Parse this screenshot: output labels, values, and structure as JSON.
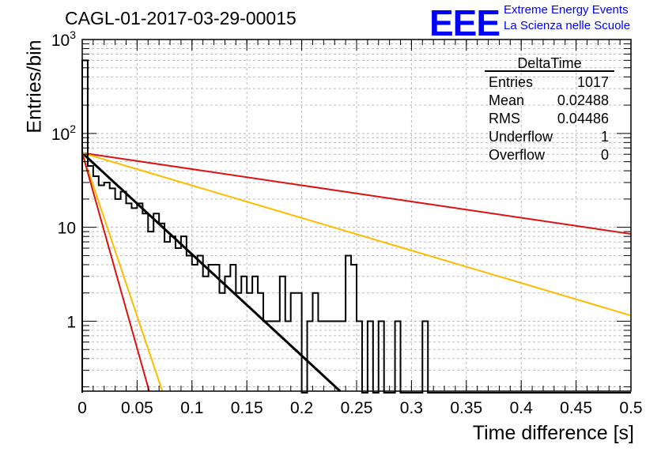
{
  "header": {
    "title": "CAGL-01-2017-03-29-00015",
    "logo_text": "EEE",
    "logo_line1": "Extreme Energy Events",
    "logo_line2": "La Scienza nelle Scuole"
  },
  "stats_box": {
    "name": "DeltaTime",
    "rows": [
      {
        "label": "Entries",
        "value": "1017"
      },
      {
        "label": "Mean",
        "value": "0.02488"
      },
      {
        "label": "RMS",
        "value": "0.04486"
      },
      {
        "label": "Underflow",
        "value": "1"
      },
      {
        "label": "Overflow",
        "value": "0"
      }
    ]
  },
  "colors": {
    "histogram": "#000000",
    "fit": "#000000",
    "red_band": "#dd1111",
    "yellow_band": "#ffbb00",
    "grid": "#bbbbbb"
  },
  "chart_data": {
    "type": "histogram",
    "title": "CAGL-01-2017-03-29-00015",
    "xlabel": "Time difference [s]",
    "ylabel": "Entries/bin",
    "xlim": [
      0,
      0.5
    ],
    "ylim": [
      0.18,
      1000
    ],
    "yscale": "log",
    "grid": true,
    "xticks": [
      "0",
      "0.05",
      "0.1",
      "0.15",
      "0.2",
      "0.25",
      "0.3",
      "0.35",
      "0.4",
      "0.45",
      "0.5"
    ],
    "yticks": [
      {
        "value": 1,
        "label": "1"
      },
      {
        "value": 10,
        "label": "10"
      },
      {
        "value": 100,
        "label": "10^2"
      },
      {
        "value": 1000,
        "label": "10^3"
      }
    ],
    "bin_width": 0.005,
    "bin_contents": [
      600,
      45,
      35,
      28,
      30,
      26,
      20,
      24,
      18,
      16,
      18,
      14,
      9,
      14,
      11,
      7,
      8,
      6,
      8,
      5,
      4,
      5,
      3,
      4,
      4,
      2,
      3,
      4,
      2,
      3,
      2,
      3,
      2,
      1,
      1,
      1,
      3,
      1,
      2,
      2,
      0,
      1,
      2,
      1,
      1,
      1,
      1,
      1,
      5,
      4,
      1,
      0,
      1,
      0,
      1,
      0,
      0,
      1,
      0,
      0,
      0,
      0,
      1,
      0,
      0,
      0,
      0,
      0,
      0,
      0,
      0,
      0,
      0,
      0,
      0,
      0,
      0,
      0,
      0,
      0,
      0,
      0,
      0,
      0,
      0,
      0,
      0,
      0,
      0,
      0,
      0,
      0,
      0,
      0,
      0,
      0,
      0,
      0,
      0,
      0
    ],
    "curves": [
      {
        "role": "fit",
        "color": "#000000",
        "x": [
          0,
          0.235
        ],
        "y": [
          62,
          0.18
        ]
      },
      {
        "role": "upper-red",
        "color": "#dd1111",
        "x": [
          0,
          0.5
        ],
        "y": [
          62,
          8.5
        ]
      },
      {
        "role": "upper-yellow",
        "color": "#ffbb00",
        "x": [
          0,
          0.5
        ],
        "y": [
          62,
          1.15
        ]
      },
      {
        "role": "lower-yellow",
        "color": "#ffbb00",
        "x": [
          0,
          0.073
        ],
        "y": [
          62,
          0.18
        ]
      },
      {
        "role": "lower-red",
        "color": "#dd1111",
        "x": [
          0,
          0.061
        ],
        "y": [
          62,
          0.18
        ]
      }
    ]
  }
}
